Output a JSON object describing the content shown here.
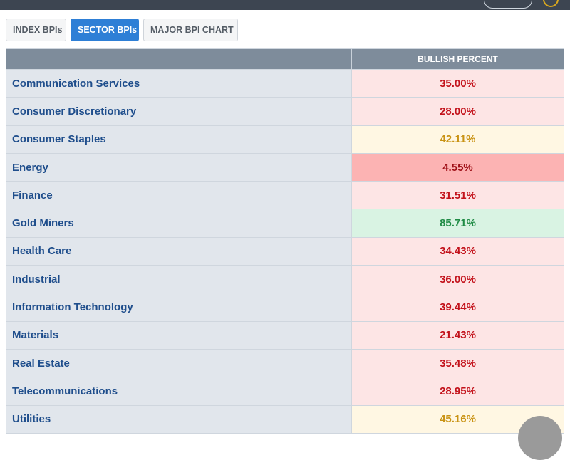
{
  "tabs": [
    {
      "label": "INDEX BPIs",
      "active": false
    },
    {
      "label": "SECTOR BPIs",
      "active": true
    },
    {
      "label": "MAJOR BPI CHART",
      "active": false
    }
  ],
  "table": {
    "header": {
      "name": "",
      "value": "BULLISH PERCENT"
    },
    "rows": [
      {
        "name": "Communication Services",
        "value": "35.00%",
        "status": "red"
      },
      {
        "name": "Consumer Discretionary",
        "value": "28.00%",
        "status": "red"
      },
      {
        "name": "Consumer Staples",
        "value": "42.11%",
        "status": "yellow"
      },
      {
        "name": "Energy",
        "value": "4.55%",
        "status": "red-strong"
      },
      {
        "name": "Finance",
        "value": "31.51%",
        "status": "red"
      },
      {
        "name": "Gold Miners",
        "value": "85.71%",
        "status": "green"
      },
      {
        "name": "Health Care",
        "value": "34.43%",
        "status": "red"
      },
      {
        "name": "Industrial",
        "value": "36.00%",
        "status": "red"
      },
      {
        "name": "Information Technology",
        "value": "39.44%",
        "status": "red"
      },
      {
        "name": "Materials",
        "value": "21.43%",
        "status": "red"
      },
      {
        "name": "Real Estate",
        "value": "35.48%",
        "status": "red"
      },
      {
        "name": "Telecommunications",
        "value": "28.95%",
        "status": "red"
      },
      {
        "name": "Utilities",
        "value": "45.16%",
        "status": "yellow"
      }
    ]
  },
  "colors": {
    "topbar": "#3d4551",
    "tab_active": "#2e7fd6",
    "header": "#7e8c9b",
    "name_text": "#1f4e8c",
    "red_text": "#c3121b",
    "yellow_text": "#c99314",
    "green_text": "#1f8b45"
  }
}
